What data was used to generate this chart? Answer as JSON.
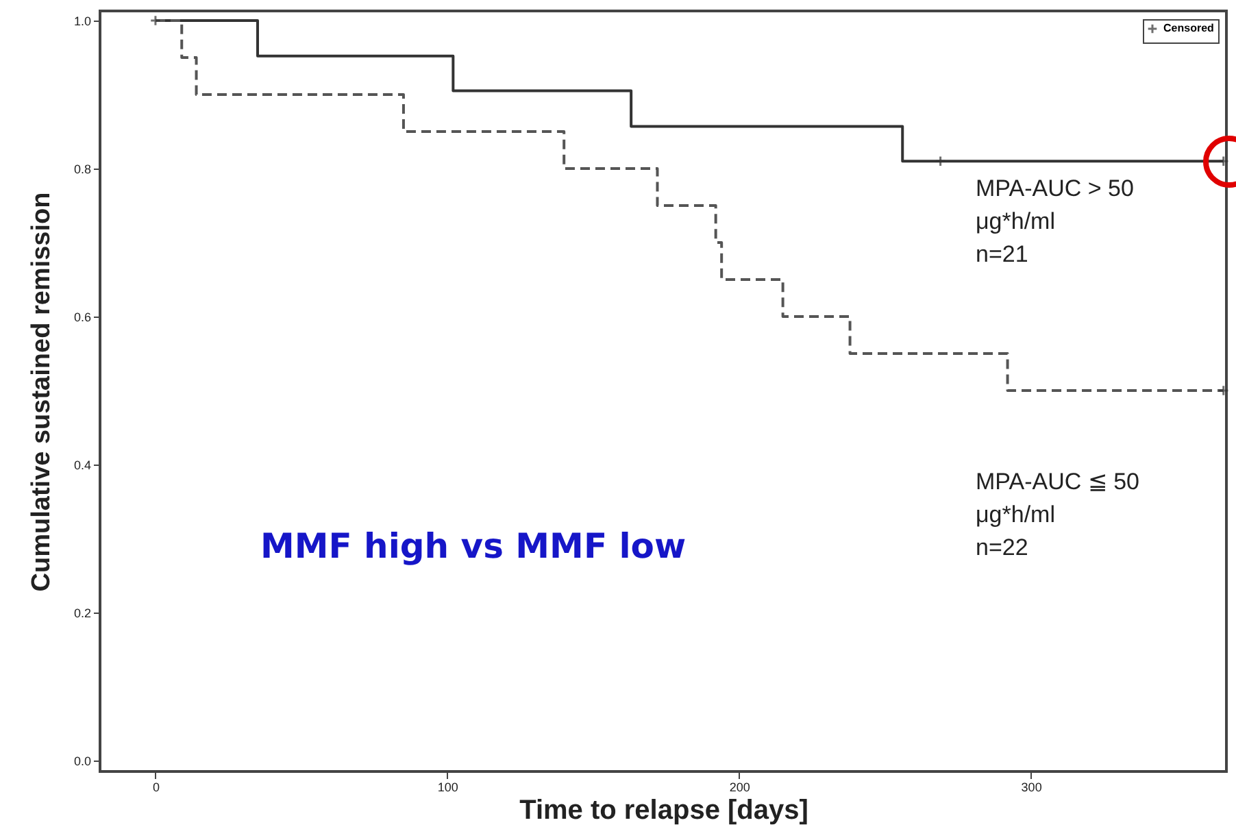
{
  "chart_data": {
    "type": "step",
    "xlabel": "Time to relapse [days]",
    "ylabel": "Cumulative sustained remission",
    "xlim": [
      -19,
      367
    ],
    "xticks": [
      0,
      100,
      200,
      300
    ],
    "ylim": [
      -0.015,
      1.013
    ],
    "yticks": [
      {
        "value": 0,
        "label": "0.0"
      },
      {
        "value": 0.2,
        "label": "0.2"
      },
      {
        "value": 0.4,
        "label": "0.4"
      },
      {
        "value": 0.6,
        "label": "0.6"
      },
      {
        "value": 0.8,
        "label": "0.8"
      },
      {
        "value": 1,
        "label": "1.0"
      }
    ],
    "grid": false,
    "legend": "top right",
    "series": [
      {
        "color": "#333333",
        "line_style": "solid",
        "x": [
          0,
          35,
          102,
          163,
          256,
          366
        ],
        "values": [
          1.0,
          0.952,
          0.905,
          0.857,
          0.81,
          0.81
        ]
      },
      {
        "color": "#555555",
        "line_style": "dashed",
        "x": [
          0,
          9,
          14,
          85,
          140,
          172,
          192,
          194,
          215,
          238,
          292,
          366
        ],
        "values": [
          1.0,
          0.95,
          0.9,
          0.85,
          0.8,
          0.75,
          0.7,
          0.65,
          0.6,
          0.55,
          0.5,
          0.5
        ]
      },
      {
        "type": "scatter",
        "name": "Censored",
        "marker": "cross",
        "color": "#333333",
        "x": [
          0,
          269,
          366,
          366
        ],
        "values": [
          1.0,
          0.81,
          0.81,
          0.5
        ]
      }
    ],
    "annotations": [
      "MPA-AUC > 50\nμg*h/ml\nn=21",
      "MPA-AUC ≦ 50\nμg*h/ml\nn=22",
      "MMF high vs MMF low"
    ]
  }
}
